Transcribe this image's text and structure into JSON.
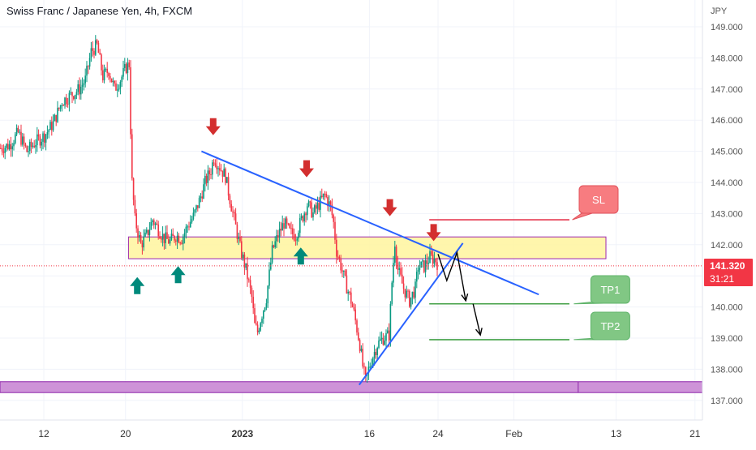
{
  "header": {
    "title": "Swiss Franc / Japanese Yen, 4h, FXCM",
    "currency": "JPY"
  },
  "last_price": {
    "value": "141.320",
    "countdown": "31:21"
  },
  "annotations": {
    "sl": "SL",
    "tp1": "TP1",
    "tp2": "TP2"
  },
  "colors": {
    "up": "#089981",
    "down": "#f23645",
    "trendline": "#2962ff",
    "zone_fill": "#fff59d",
    "zone_border": "#9c27b0",
    "support_fill": "#ce93d8",
    "tp_line": "#43a047",
    "sl_line": "#e53950",
    "arrow_down": "#d32f2f",
    "arrow_up": "#00897b"
  },
  "chart_data": {
    "type": "candlestick",
    "title": "Swiss Franc / Japanese Yen, 4h, FXCM",
    "ylabel": "JPY",
    "ylim": [
      136.7,
      149.4
    ],
    "y_ticks": [
      "149.000",
      "148.000",
      "147.000",
      "146.000",
      "145.000",
      "144.000",
      "143.000",
      "142.000",
      "141.000",
      "140.000",
      "139.000",
      "138.000",
      "137.000"
    ],
    "x_ticks": [
      "12",
      "20",
      "2023",
      "16",
      "24",
      "Feb",
      "13",
      "21"
    ],
    "x_tick_bars": [
      30,
      86,
      166,
      253,
      300,
      352,
      422,
      476
    ],
    "close_path": [
      [
        0,
        145.1
      ],
      [
        6,
        145.2
      ],
      [
        12,
        145.6
      ],
      [
        18,
        145.0
      ],
      [
        24,
        145.3
      ],
      [
        30,
        145.5
      ],
      [
        36,
        145.9
      ],
      [
        42,
        146.6
      ],
      [
        48,
        146.8
      ],
      [
        54,
        147.0
      ],
      [
        58,
        147.3
      ],
      [
        62,
        148.2
      ],
      [
        66,
        148.4
      ],
      [
        70,
        147.4
      ],
      [
        74,
        147.6
      ],
      [
        78,
        147.0
      ],
      [
        82,
        147.3
      ],
      [
        86,
        147.7
      ],
      [
        88,
        147.8
      ],
      [
        89,
        145.7
      ],
      [
        90,
        144.0
      ],
      [
        92,
        142.8
      ],
      [
        96,
        142.0
      ],
      [
        100,
        142.3
      ],
      [
        104,
        142.8
      ],
      [
        108,
        142.5
      ],
      [
        112,
        142.2
      ],
      [
        116,
        142.1
      ],
      [
        120,
        142.3
      ],
      [
        124,
        142.2
      ],
      [
        128,
        142.6
      ],
      [
        132,
        142.9
      ],
      [
        136,
        143.4
      ],
      [
        140,
        144.0
      ],
      [
        144,
        144.4
      ],
      [
        146,
        144.8
      ],
      [
        150,
        144.5
      ],
      [
        154,
        144.2
      ],
      [
        156,
        143.7
      ],
      [
        160,
        142.8
      ],
      [
        164,
        141.9
      ],
      [
        168,
        141.2
      ],
      [
        172,
        140.3
      ],
      [
        174,
        139.4
      ],
      [
        176,
        139.2
      ],
      [
        178,
        139.6
      ],
      [
        182,
        140.3
      ],
      [
        186,
        141.8
      ],
      [
        190,
        142.3
      ],
      [
        194,
        142.7
      ],
      [
        198,
        142.4
      ],
      [
        202,
        142.3
      ],
      [
        206,
        142.8
      ],
      [
        210,
        143.3
      ],
      [
        214,
        143.0
      ],
      [
        218,
        143.3
      ],
      [
        222,
        143.6
      ],
      [
        226,
        143.2
      ],
      [
        228,
        142.7
      ],
      [
        230,
        141.8
      ],
      [
        232,
        141.5
      ],
      [
        236,
        140.8
      ],
      [
        240,
        140.2
      ],
      [
        242,
        139.8
      ],
      [
        244,
        139.3
      ],
      [
        246,
        138.8
      ],
      [
        248,
        138.1
      ],
      [
        250,
        137.6
      ],
      [
        252,
        138.0
      ],
      [
        254,
        138.3
      ],
      [
        258,
        138.8
      ],
      [
        262,
        139.0
      ],
      [
        266,
        139.1
      ],
      [
        268,
        140.8
      ],
      [
        270,
        142.1
      ],
      [
        272,
        141.2
      ],
      [
        276,
        140.6
      ],
      [
        280,
        140.2
      ],
      [
        284,
        140.6
      ],
      [
        286,
        141.3
      ],
      [
        290,
        141.3
      ],
      [
        294,
        141.6
      ],
      [
        298,
        141.5
      ],
      [
        300,
        141.32
      ]
    ],
    "series": [],
    "zones": [
      {
        "low": 141.55,
        "high": 142.25,
        "from_bar": 88,
        "to_bar": 415
      },
      {
        "low": 137.25,
        "high": 137.6,
        "from_bar": 0,
        "to_bar": 480
      }
    ],
    "trendlines": [
      {
        "from": [
          138,
          145.0
        ],
        "to": [
          369,
          140.4
        ]
      },
      {
        "from": [
          246,
          137.5
        ],
        "to": [
          317,
          142.05
        ]
      }
    ],
    "levels": [
      {
        "label": "SL",
        "price": 142.8,
        "from_bar": 294,
        "to_bar": 390
      },
      {
        "label": "TP1",
        "price": 140.1,
        "from_bar": 294,
        "to_bar": 390
      },
      {
        "label": "TP2",
        "price": 138.95,
        "from_bar": 294,
        "to_bar": 390
      }
    ],
    "markers_down": [
      [
        146,
        145.75
      ],
      [
        210,
        144.4
      ],
      [
        267,
        143.15
      ],
      [
        297,
        142.35
      ]
    ],
    "markers_up": [
      [
        94,
        140.7
      ],
      [
        122,
        141.05
      ],
      [
        206,
        141.65
      ]
    ],
    "projection": [
      [
        300,
        141.7
      ],
      [
        306,
        140.85
      ],
      [
        313,
        141.75
      ],
      [
        319,
        140.2
      ],
      [
        324,
        140.1
      ],
      [
        329,
        139.1
      ]
    ]
  }
}
